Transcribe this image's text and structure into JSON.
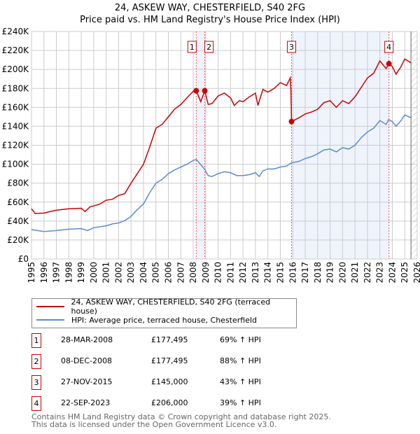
{
  "chart_data": {
    "type": "line",
    "title": "24, ASKEW WAY, CHESTERFIELD, S40 2FG",
    "subtitle": "Price paid vs. HM Land Registry's House Price Index (HPI)",
    "xlim": [
      1995,
      2026
    ],
    "ylim": [
      0,
      240000
    ],
    "y_ticks": [
      "£0",
      "£20K",
      "£40K",
      "£60K",
      "£80K",
      "£100K",
      "£120K",
      "£140K",
      "£160K",
      "£180K",
      "£200K",
      "£220K",
      "£240K"
    ],
    "x_ticks": [
      "1995",
      "1996",
      "1997",
      "1998",
      "1999",
      "2000",
      "2001",
      "2002",
      "2003",
      "2004",
      "2005",
      "2006",
      "2007",
      "2008",
      "2009",
      "2010",
      "2011",
      "2012",
      "2013",
      "2014",
      "2015",
      "2016",
      "2017",
      "2018",
      "2019",
      "2020",
      "2021",
      "2022",
      "2023",
      "2024",
      "2025",
      "2026"
    ],
    "grid": true,
    "series": [
      {
        "name": "24, ASKEW WAY, CHESTERFIELD, S40 2FG (terraced house)",
        "color": "#cc0000",
        "x": [
          1995,
          1995.3,
          1996,
          1996.5,
          1997,
          1998,
          1999,
          1999.3,
          1999.7,
          2000,
          2000.5,
          2001,
          2001.5,
          2002,
          2002.5,
          2003,
          2003.5,
          2004,
          2004.5,
          2005,
          2005.5,
          2006,
          2006.5,
          2007,
          2007.5,
          2008,
          2008.24,
          2008.6,
          2008.93,
          2009.2,
          2009.5,
          2010,
          2010.5,
          2011,
          2011.3,
          2011.7,
          2012,
          2012.5,
          2013,
          2013.2,
          2013.6,
          2014,
          2014.5,
          2015,
          2015.5,
          2015.8,
          2015.85,
          2015.9,
          2016.5,
          2017,
          2017.5,
          2018,
          2018.5,
          2019,
          2019.5,
          2020,
          2020.5,
          2021,
          2021.5,
          2022,
          2022.5,
          2023,
          2023.5,
          2023.73,
          2024,
          2024.3,
          2024.7,
          2025,
          2025.5
        ],
        "y": [
          53000,
          48000,
          48500,
          50000,
          51500,
          53000,
          53500,
          50000,
          55000,
          56000,
          58000,
          62000,
          63000,
          67000,
          69000,
          80000,
          90000,
          100000,
          118000,
          138000,
          142000,
          150000,
          158000,
          163000,
          170000,
          177000,
          177495,
          166000,
          177495,
          163000,
          164000,
          172000,
          175000,
          170000,
          162000,
          167000,
          166000,
          171000,
          175000,
          162000,
          179000,
          176000,
          180000,
          186000,
          183000,
          191000,
          178000,
          145000,
          149000,
          153000,
          155000,
          158000,
          165000,
          167000,
          160000,
          167000,
          164000,
          171000,
          181000,
          191000,
          196000,
          209000,
          201000,
          206000,
          203000,
          195000,
          203000,
          211000,
          207000
        ]
      },
      {
        "name": "HPI: Average price, terraced house, Chesterfield",
        "color": "#5b8bd0",
        "x": [
          1995,
          1996,
          1997,
          1998,
          1999,
          1999.5,
          2000,
          2001,
          2001.5,
          2002,
          2002.5,
          2003,
          2003.5,
          2004,
          2004.5,
          2005,
          2005.5,
          2006,
          2006.5,
          2007,
          2007.5,
          2008,
          2008.25,
          2008.9,
          2009.2,
          2009.5,
          2010,
          2010.5,
          2011,
          2011.5,
          2012,
          2012.5,
          2013,
          2013.3,
          2013.6,
          2014,
          2014.5,
          2015,
          2015.5,
          2015.9,
          2016.5,
          2017,
          2017.5,
          2018,
          2018.5,
          2019,
          2019.5,
          2020,
          2020.5,
          2021,
          2021.5,
          2022,
          2022.5,
          2023,
          2023.5,
          2023.7,
          2024,
          2024.3,
          2024.7,
          2025,
          2025.5
        ],
        "y": [
          31000,
          29000,
          30000,
          31500,
          32000,
          30000,
          33000,
          35000,
          37000,
          38000,
          40500,
          45000,
          52000,
          58000,
          70000,
          80000,
          84000,
          90000,
          94000,
          97000,
          100000,
          104000,
          105000,
          95000,
          88000,
          87000,
          90000,
          92000,
          91000,
          88000,
          88000,
          89000,
          91000,
          87000,
          93000,
          95000,
          95000,
          97000,
          98000,
          101500,
          103000,
          106000,
          108000,
          111000,
          115000,
          116000,
          113000,
          117500,
          116000,
          120000,
          128000,
          134000,
          138000,
          146000,
          142000,
          147000,
          145000,
          140000,
          146000,
          152000,
          149000
        ]
      }
    ],
    "shaded_ranges": [
      [
        2008.24,
        2008.93
      ],
      [
        2015.9,
        2023.73
      ]
    ],
    "forecast_hatch_from": 2025.5,
    "annotations": [
      {
        "label": "1",
        "x": 2008.24,
        "y": 177495
      },
      {
        "label": "2",
        "x": 2008.93,
        "y": 177495
      },
      {
        "label": "3",
        "x": 2015.9,
        "y": 145000
      },
      {
        "label": "4",
        "x": 2023.73,
        "y": 206000
      }
    ],
    "legend_position": "below"
  },
  "transactions": [
    {
      "num": "1",
      "date": "28-MAR-2008",
      "price": "£177,495",
      "hpi": "69% ↑ HPI"
    },
    {
      "num": "2",
      "date": "08-DEC-2008",
      "price": "£177,495",
      "hpi": "88% ↑ HPI"
    },
    {
      "num": "3",
      "date": "27-NOV-2015",
      "price": "£145,000",
      "hpi": "43% ↑ HPI"
    },
    {
      "num": "4",
      "date": "22-SEP-2023",
      "price": "£206,000",
      "hpi": "39% ↑ HPI"
    }
  ],
  "footer": {
    "line1": "Contains HM Land Registry data © Crown copyright and database right 2025.",
    "line2": "This data is licensed under the Open Government Licence v3.0."
  }
}
